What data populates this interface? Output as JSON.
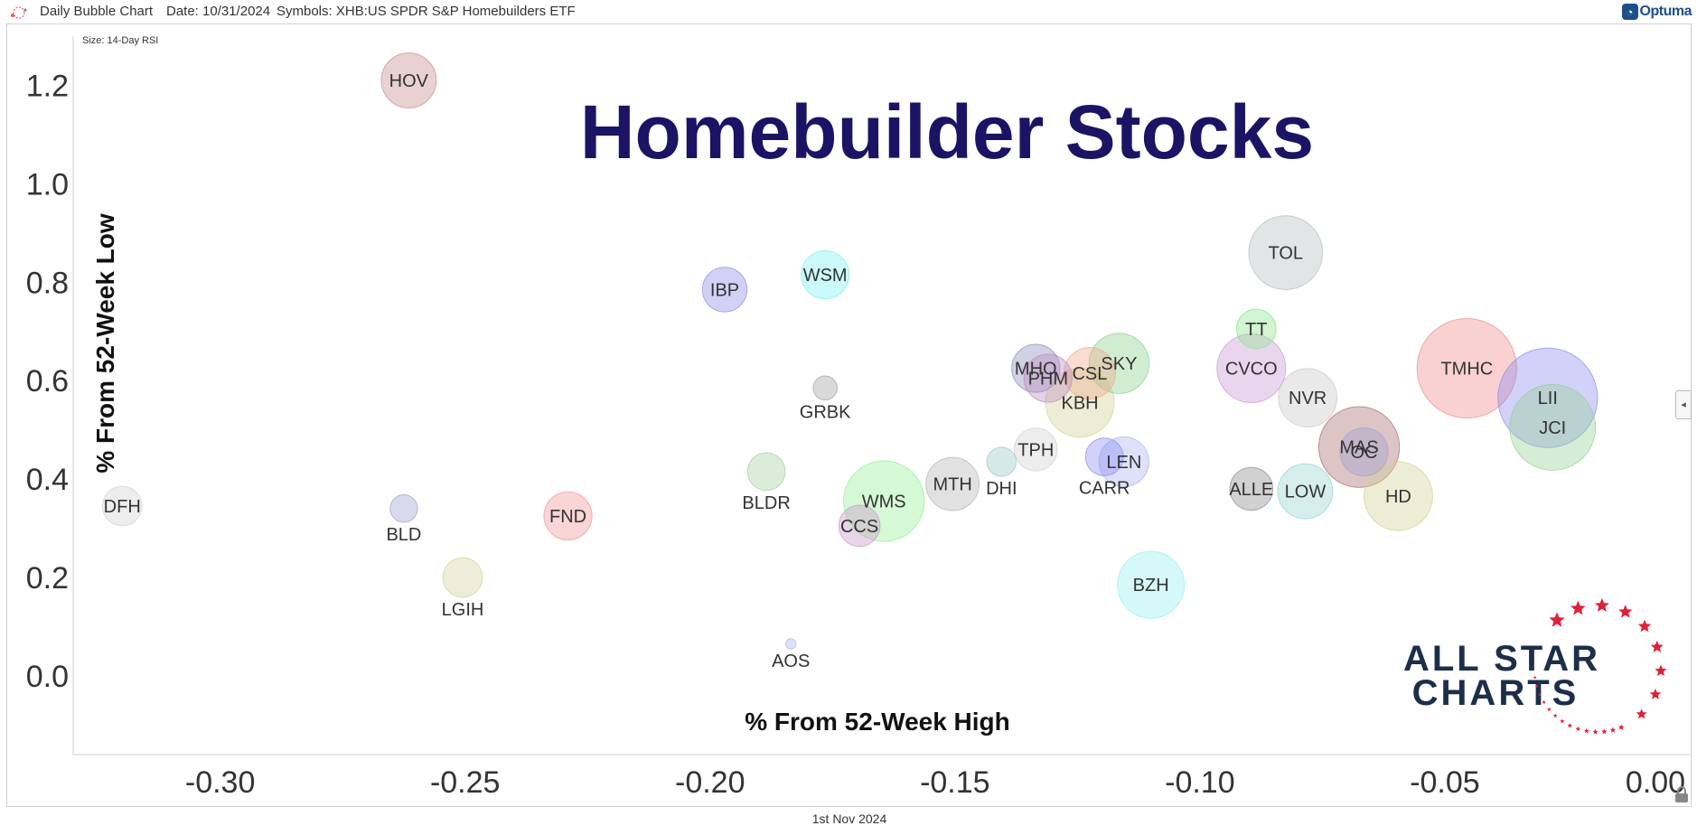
{
  "header": {
    "chart_label": "Daily Bubble Chart",
    "date_text": "Date: 10/31/2024",
    "symbols_text": "Symbols: XHB:US SPDR S&P Homebuilders ETF",
    "brand_name": "Optuma"
  },
  "footer": {
    "date_label": "1st Nov 2024"
  },
  "watermark": {
    "line1": "ALL STAR",
    "line2": "CHARTS"
  },
  "colors": {
    "title": "#1b1464",
    "axis_text": "#333333",
    "watermark_text": "#1c2e4a",
    "star_red": "#e0213a"
  },
  "chart_data": {
    "type": "scatter",
    "title": "Homebuilder Stocks",
    "size_label": "Size: 14-Day RSI",
    "xlabel": "% From 52-Week High",
    "ylabel": "% From 52-Week Low",
    "xlim": [
      -0.33,
      0.0
    ],
    "ylim": [
      -0.16,
      1.3
    ],
    "xticks": [
      "-0.30",
      "-0.25",
      "-0.20",
      "-0.15",
      "-0.10",
      "-0.05",
      "0.00"
    ],
    "yticks": [
      "0.0",
      "0.2",
      "0.4",
      "0.6",
      "0.8",
      "1.0",
      "1.2"
    ],
    "grid": false,
    "points": [
      {
        "label": "HOV",
        "x": -0.2615,
        "y": 1.21,
        "size": 3.2,
        "color": "#c98c8c",
        "label_pos": "in"
      },
      {
        "label": "IBP",
        "x": -0.197,
        "y": 0.785,
        "size": 2.6,
        "color": "#8c8ce6",
        "label_pos": "in"
      },
      {
        "label": "WSM",
        "x": -0.1765,
        "y": 0.815,
        "size": 2.8,
        "color": "#7ff0f0",
        "label_pos": "in"
      },
      {
        "label": "TOL",
        "x": -0.0825,
        "y": 0.86,
        "size": 4.3,
        "color": "#b4bebe",
        "label_pos": "in"
      },
      {
        "label": "TT",
        "x": -0.0885,
        "y": 0.705,
        "size": 2.3,
        "color": "#8ce68c",
        "label_pos": "in"
      },
      {
        "label": "CVCO",
        "x": -0.0895,
        "y": 0.625,
        "size": 4.0,
        "color": "#c896d2",
        "label_pos": "in"
      },
      {
        "label": "NVR",
        "x": -0.078,
        "y": 0.565,
        "size": 3.4,
        "color": "#c8c8c8",
        "label_pos": "in"
      },
      {
        "label": "TMHC",
        "x": -0.0455,
        "y": 0.625,
        "size": 5.8,
        "color": "#f08c8c",
        "label_pos": "in"
      },
      {
        "label": "LII",
        "x": -0.029,
        "y": 0.565,
        "size": 5.8,
        "color": "#8c8cf0",
        "label_pos": "in"
      },
      {
        "label": "JCI",
        "x": -0.028,
        "y": 0.505,
        "size": 5.0,
        "color": "#96d296",
        "label_pos": "in"
      },
      {
        "label": "MAS",
        "x": -0.0675,
        "y": 0.465,
        "size": 4.7,
        "color": "#aa6e6e",
        "label_pos": "in"
      },
      {
        "label": "OC",
        "x": -0.0665,
        "y": 0.455,
        "size": 2.8,
        "color": "#a0a0d2",
        "label_pos": "in"
      },
      {
        "label": "HD",
        "x": -0.0595,
        "y": 0.365,
        "size": 4.0,
        "color": "#d2d296",
        "label_pos": "in"
      },
      {
        "label": "LOW",
        "x": -0.0785,
        "y": 0.375,
        "size": 3.2,
        "color": "#96d2d2",
        "label_pos": "in"
      },
      {
        "label": "ALLE",
        "x": -0.0895,
        "y": 0.38,
        "size": 2.5,
        "color": "#8c8c8c",
        "label_pos": "in"
      },
      {
        "label": "BZH",
        "x": -0.11,
        "y": 0.185,
        "size": 3.9,
        "color": "#96f0f0",
        "label_pos": "in"
      },
      {
        "label": "SKY",
        "x": -0.1165,
        "y": 0.635,
        "size": 3.5,
        "color": "#8cd28c",
        "label_pos": "in"
      },
      {
        "label": "CSL",
        "x": -0.1225,
        "y": 0.615,
        "size": 3.0,
        "color": "#f0aa8c",
        "label_pos": "in"
      },
      {
        "label": "KBH",
        "x": -0.1245,
        "y": 0.555,
        "size": 4.0,
        "color": "#d2d296",
        "label_pos": "in"
      },
      {
        "label": "MHO",
        "x": -0.1335,
        "y": 0.625,
        "size": 2.8,
        "color": "#8c8cbe",
        "label_pos": "in"
      },
      {
        "label": "PHM",
        "x": -0.131,
        "y": 0.605,
        "size": 2.8,
        "color": "#be8cbe",
        "label_pos": "in"
      },
      {
        "label": "TPH",
        "x": -0.1335,
        "y": 0.46,
        "size": 2.5,
        "color": "#d2d2d2",
        "label_pos": "in"
      },
      {
        "label": "CARR",
        "x": -0.1195,
        "y": 0.445,
        "size": 2.2,
        "color": "#8c8cf0",
        "label_pos": "below"
      },
      {
        "label": "LEN",
        "x": -0.1155,
        "y": 0.435,
        "size": 2.9,
        "color": "#aab4f0",
        "label_pos": "in"
      },
      {
        "label": "DHI",
        "x": -0.1405,
        "y": 0.435,
        "size": 1.7,
        "color": "#96c8c8",
        "label_pos": "below"
      },
      {
        "label": "MTH",
        "x": -0.1505,
        "y": 0.39,
        "size": 3.1,
        "color": "#b4b4b4",
        "label_pos": "in"
      },
      {
        "label": "WMS",
        "x": -0.1645,
        "y": 0.355,
        "size": 4.7,
        "color": "#96f096",
        "label_pos": "in"
      },
      {
        "label": "CCS",
        "x": -0.1695,
        "y": 0.305,
        "size": 2.4,
        "color": "#c896c8",
        "label_pos": "in"
      },
      {
        "label": "GRBK",
        "x": -0.1765,
        "y": 0.585,
        "size": 1.4,
        "color": "#a0a0a0",
        "label_pos": "below"
      },
      {
        "label": "BLDR",
        "x": -0.1885,
        "y": 0.415,
        "size": 2.2,
        "color": "#a0d2a0",
        "label_pos": "below"
      },
      {
        "label": "AOS",
        "x": -0.1835,
        "y": 0.065,
        "size": 0.6,
        "color": "#aab4f0",
        "label_pos": "below"
      },
      {
        "label": "FND",
        "x": -0.229,
        "y": 0.325,
        "size": 2.8,
        "color": "#f09696",
        "label_pos": "in"
      },
      {
        "label": "BLD",
        "x": -0.2625,
        "y": 0.34,
        "size": 1.6,
        "color": "#a0a0d2",
        "label_pos": "below"
      },
      {
        "label": "LGIH",
        "x": -0.2505,
        "y": 0.2,
        "size": 2.3,
        "color": "#d2d2a0",
        "label_pos": "below"
      },
      {
        "label": "DFH",
        "x": -0.32,
        "y": 0.345,
        "size": 2.3,
        "color": "#d2d2d2",
        "label_pos": "in"
      }
    ]
  }
}
